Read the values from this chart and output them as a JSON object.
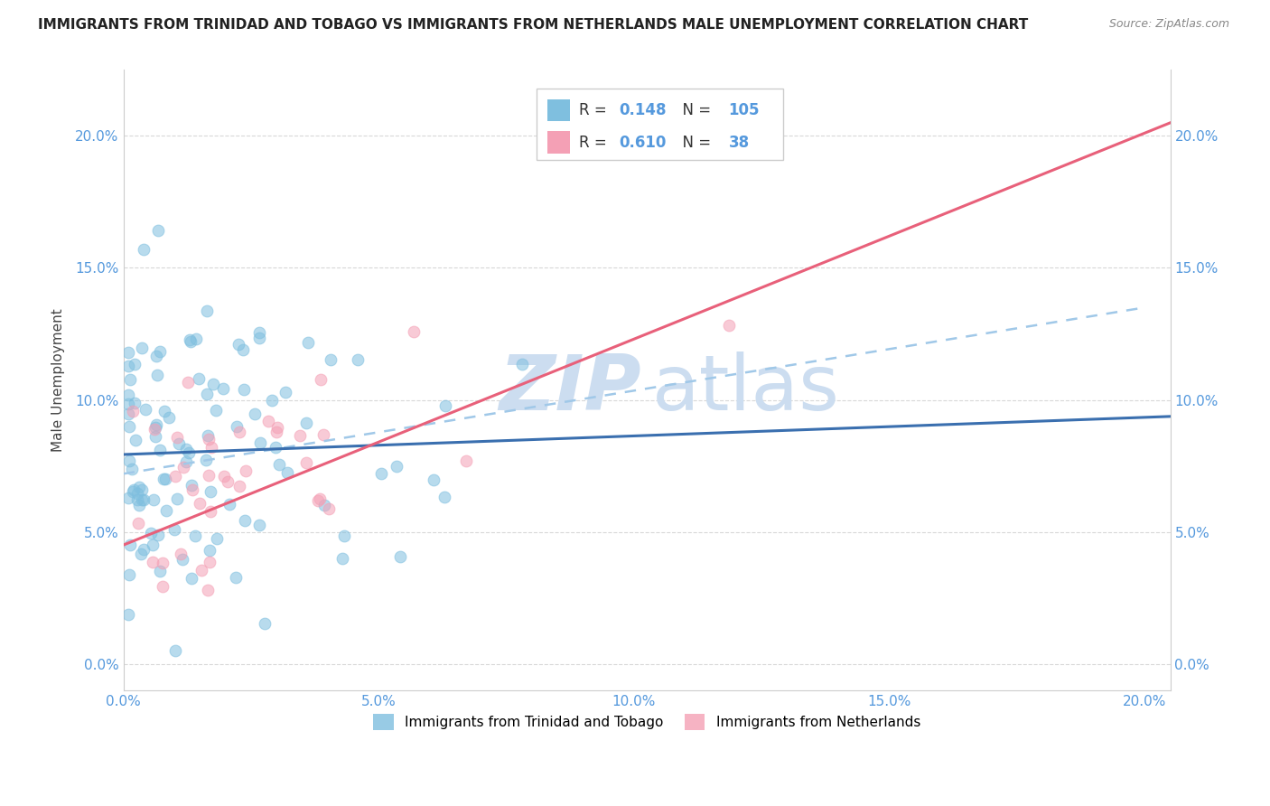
{
  "title": "IMMIGRANTS FROM TRINIDAD AND TOBAGO VS IMMIGRANTS FROM NETHERLANDS MALE UNEMPLOYMENT CORRELATION CHART",
  "source": "Source: ZipAtlas.com",
  "ylabel": "Male Unemployment",
  "legend_label_1": "Immigrants from Trinidad and Tobago",
  "legend_label_2": "Immigrants from Netherlands",
  "R1": 0.148,
  "N1": 105,
  "R2": 0.61,
  "N2": 38,
  "color_blue": "#7fbfdf",
  "color_pink": "#f4a0b5",
  "color_blue_line": "#3a6faf",
  "color_pink_line": "#e8607a",
  "color_blue_dashed": "#a0c8e8",
  "color_axis_text": "#5599dd",
  "xlim_min": 0.0,
  "xlim_max": 0.205,
  "ylim_min": -0.01,
  "ylim_max": 0.225,
  "watermark_zip": "ZIP",
  "watermark_atlas": "atlas",
  "watermark_color": "#ccddf0",
  "title_fontsize": 11,
  "axis_label_fontsize": 11,
  "tick_fontsize": 11,
  "grid_color": "#d8d8d8",
  "seed1": 42,
  "seed2": 123
}
